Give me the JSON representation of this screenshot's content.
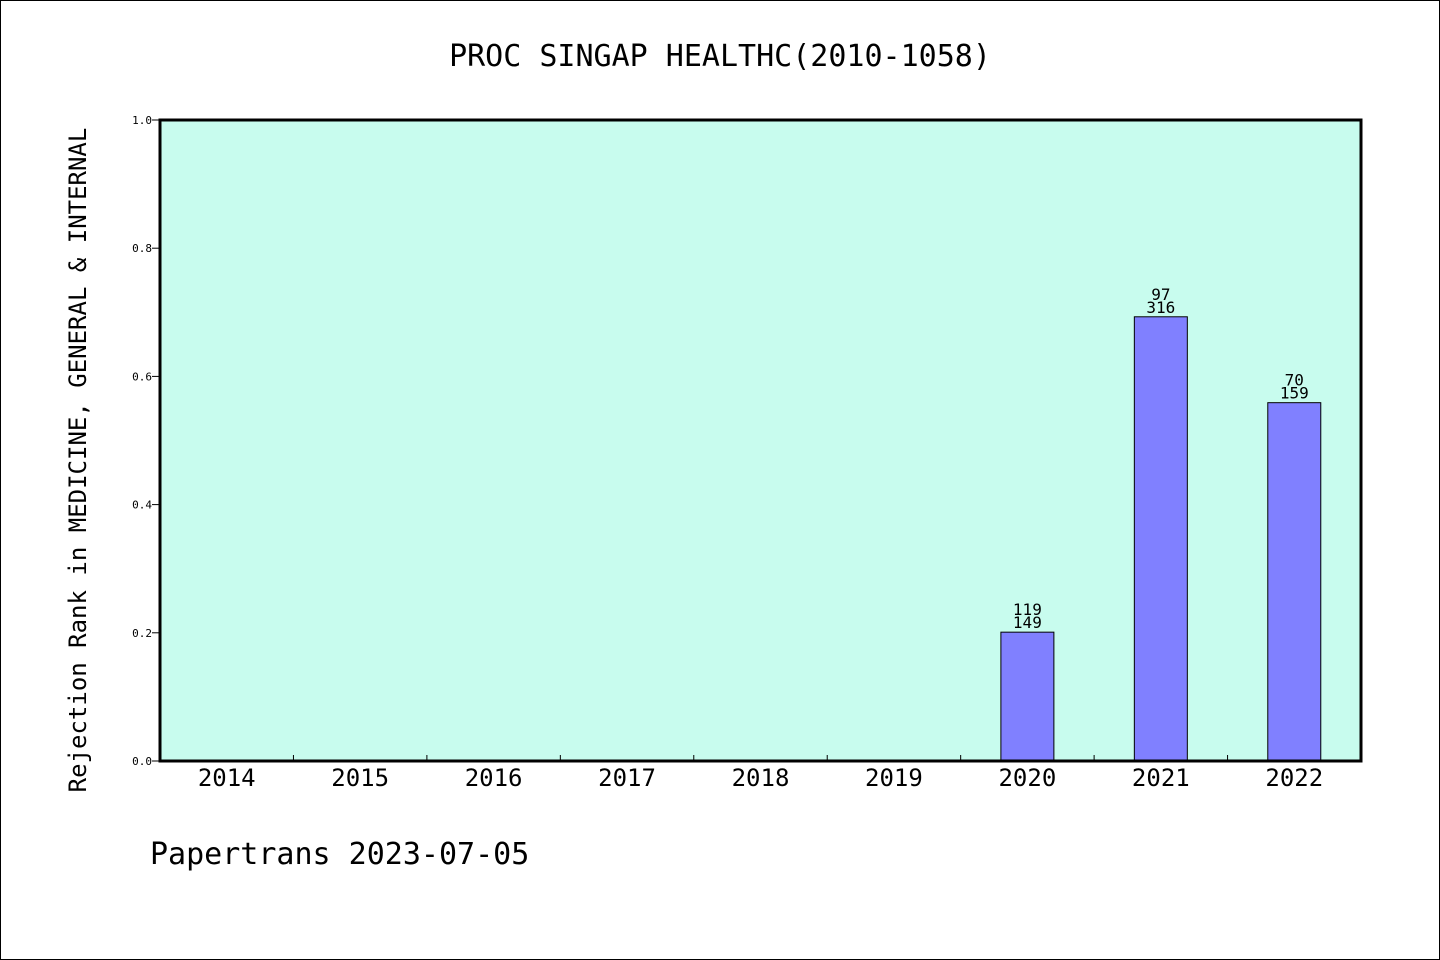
{
  "chart_data": {
    "type": "bar",
    "title": "PROC SINGAP HEALTHC(2010-1058)",
    "ylabel": "Rejection Rank in MEDICINE, GENERAL & INTERNAL",
    "xlabel": "",
    "categories": [
      "2014",
      "2015",
      "2016",
      "2017",
      "2018",
      "2019",
      "2020",
      "2021",
      "2022"
    ],
    "values": [
      null,
      null,
      null,
      null,
      null,
      null,
      0.201,
      0.693,
      0.559
    ],
    "bar_labels_top": [
      "",
      "",
      "",
      "",
      "",
      "",
      "119",
      "97",
      "70"
    ],
    "bar_labels_bottom": [
      "",
      "",
      "",
      "",
      "",
      "",
      "149",
      "316",
      "159"
    ],
    "ylim": [
      0,
      1.0
    ],
    "yticks": [
      "0.0",
      "0.2",
      "0.4",
      "0.6",
      "0.8",
      "1.0"
    ],
    "ytick_values": [
      0.0,
      0.2,
      0.4,
      0.6,
      0.8,
      1.0
    ],
    "grid": false,
    "colors": {
      "plot_background": "#c8fcee",
      "bar": "#8080ff",
      "axis": "#000000"
    }
  },
  "footer": "Papertrans 2023-07-05"
}
